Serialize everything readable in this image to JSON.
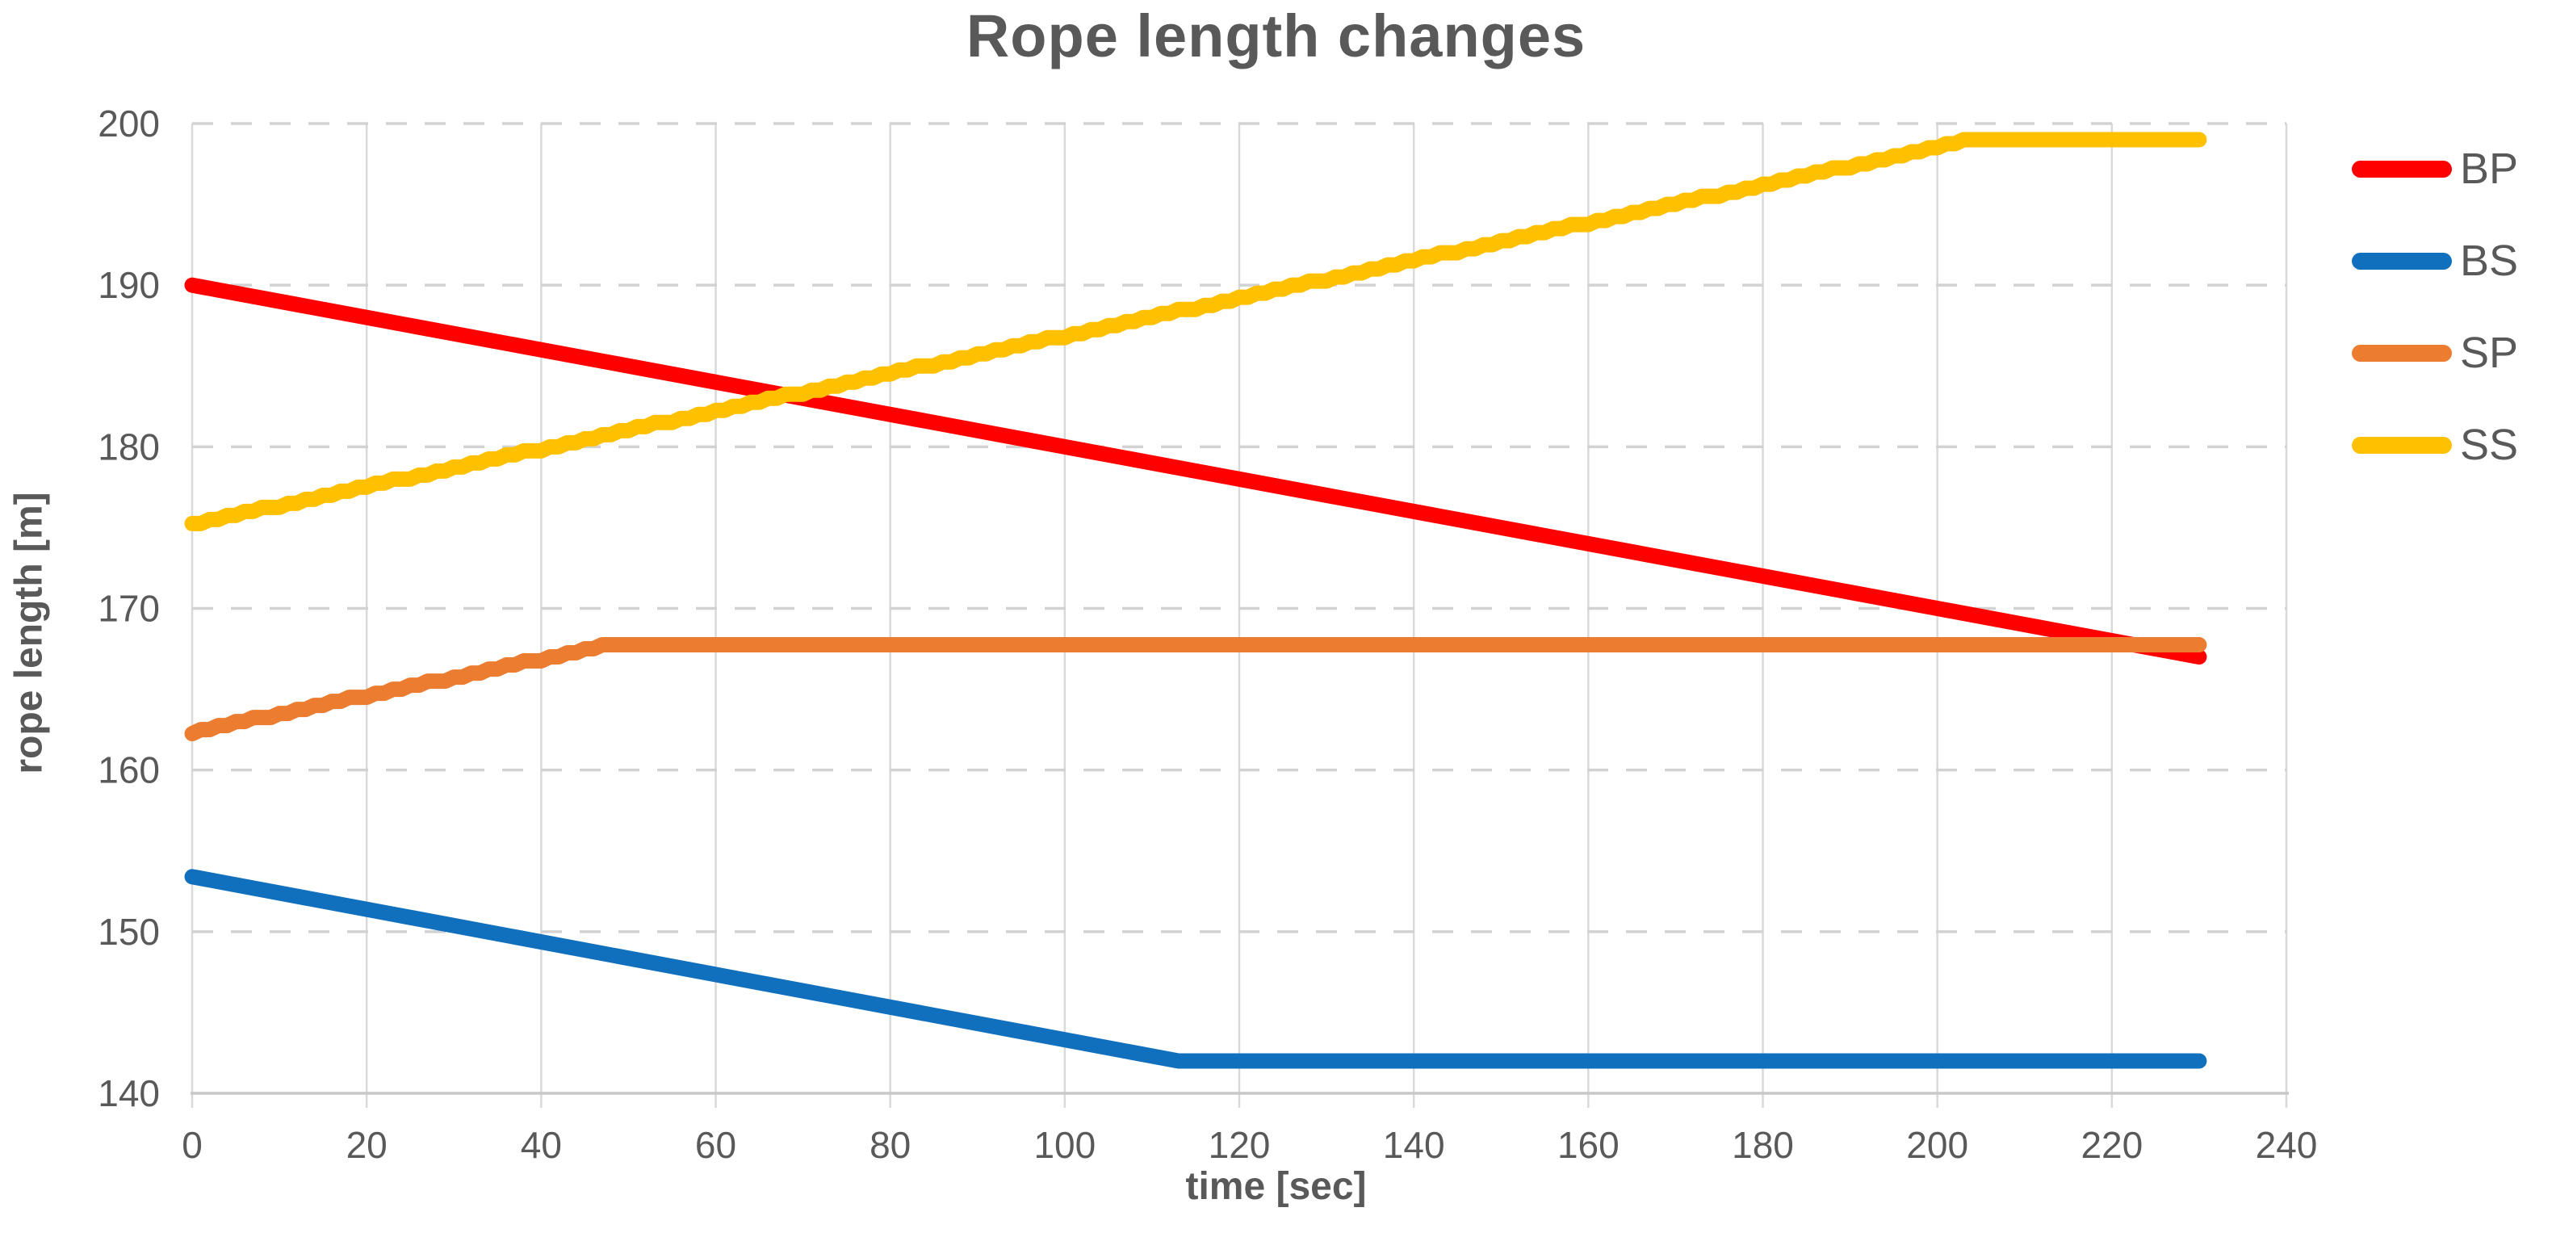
{
  "page": {
    "background": "#FFFFFF"
  },
  "chart_data": {
    "type": "line",
    "title": "Rope length changes",
    "xlabel": "time [sec]",
    "ylabel": "rope length [m]",
    "xlim": [
      0,
      240
    ],
    "ylim": [
      140,
      200
    ],
    "x_ticks": [
      0,
      20,
      40,
      60,
      80,
      100,
      120,
      140,
      160,
      180,
      200,
      220,
      240
    ],
    "y_ticks": [
      140,
      150,
      160,
      170,
      180,
      190,
      200
    ],
    "grid": {
      "h_gridline_style": "dashed",
      "v_gridline_style": "solid",
      "gridline_color": "#D9D9D9",
      "h_dash_color": "#D2D2D2",
      "axis_line_color": "#C8C8C8",
      "text_color": "#595959"
    },
    "legend_position": "right",
    "line_width": 19,
    "series": [
      {
        "name": "BP",
        "color": "#FF0000",
        "quantize": null,
        "points": [
          [
            0,
            190
          ],
          [
            230,
            167
          ]
        ]
      },
      {
        "name": "BS",
        "color": "#1170BE",
        "quantize": null,
        "points": [
          [
            0,
            153.4
          ],
          [
            113,
            142
          ],
          [
            230,
            142
          ]
        ]
      },
      {
        "name": "SP",
        "color": "#EC7C30",
        "quantize": 0.25,
        "points": [
          [
            0,
            162.35
          ],
          [
            48,
            167.75
          ],
          [
            230,
            167.75
          ]
        ]
      },
      {
        "name": "SS",
        "color": "#FFC000",
        "quantize": 0.25,
        "points": [
          [
            0,
            175.2
          ],
          [
            204,
            199
          ],
          [
            230,
            199
          ]
        ]
      }
    ]
  }
}
